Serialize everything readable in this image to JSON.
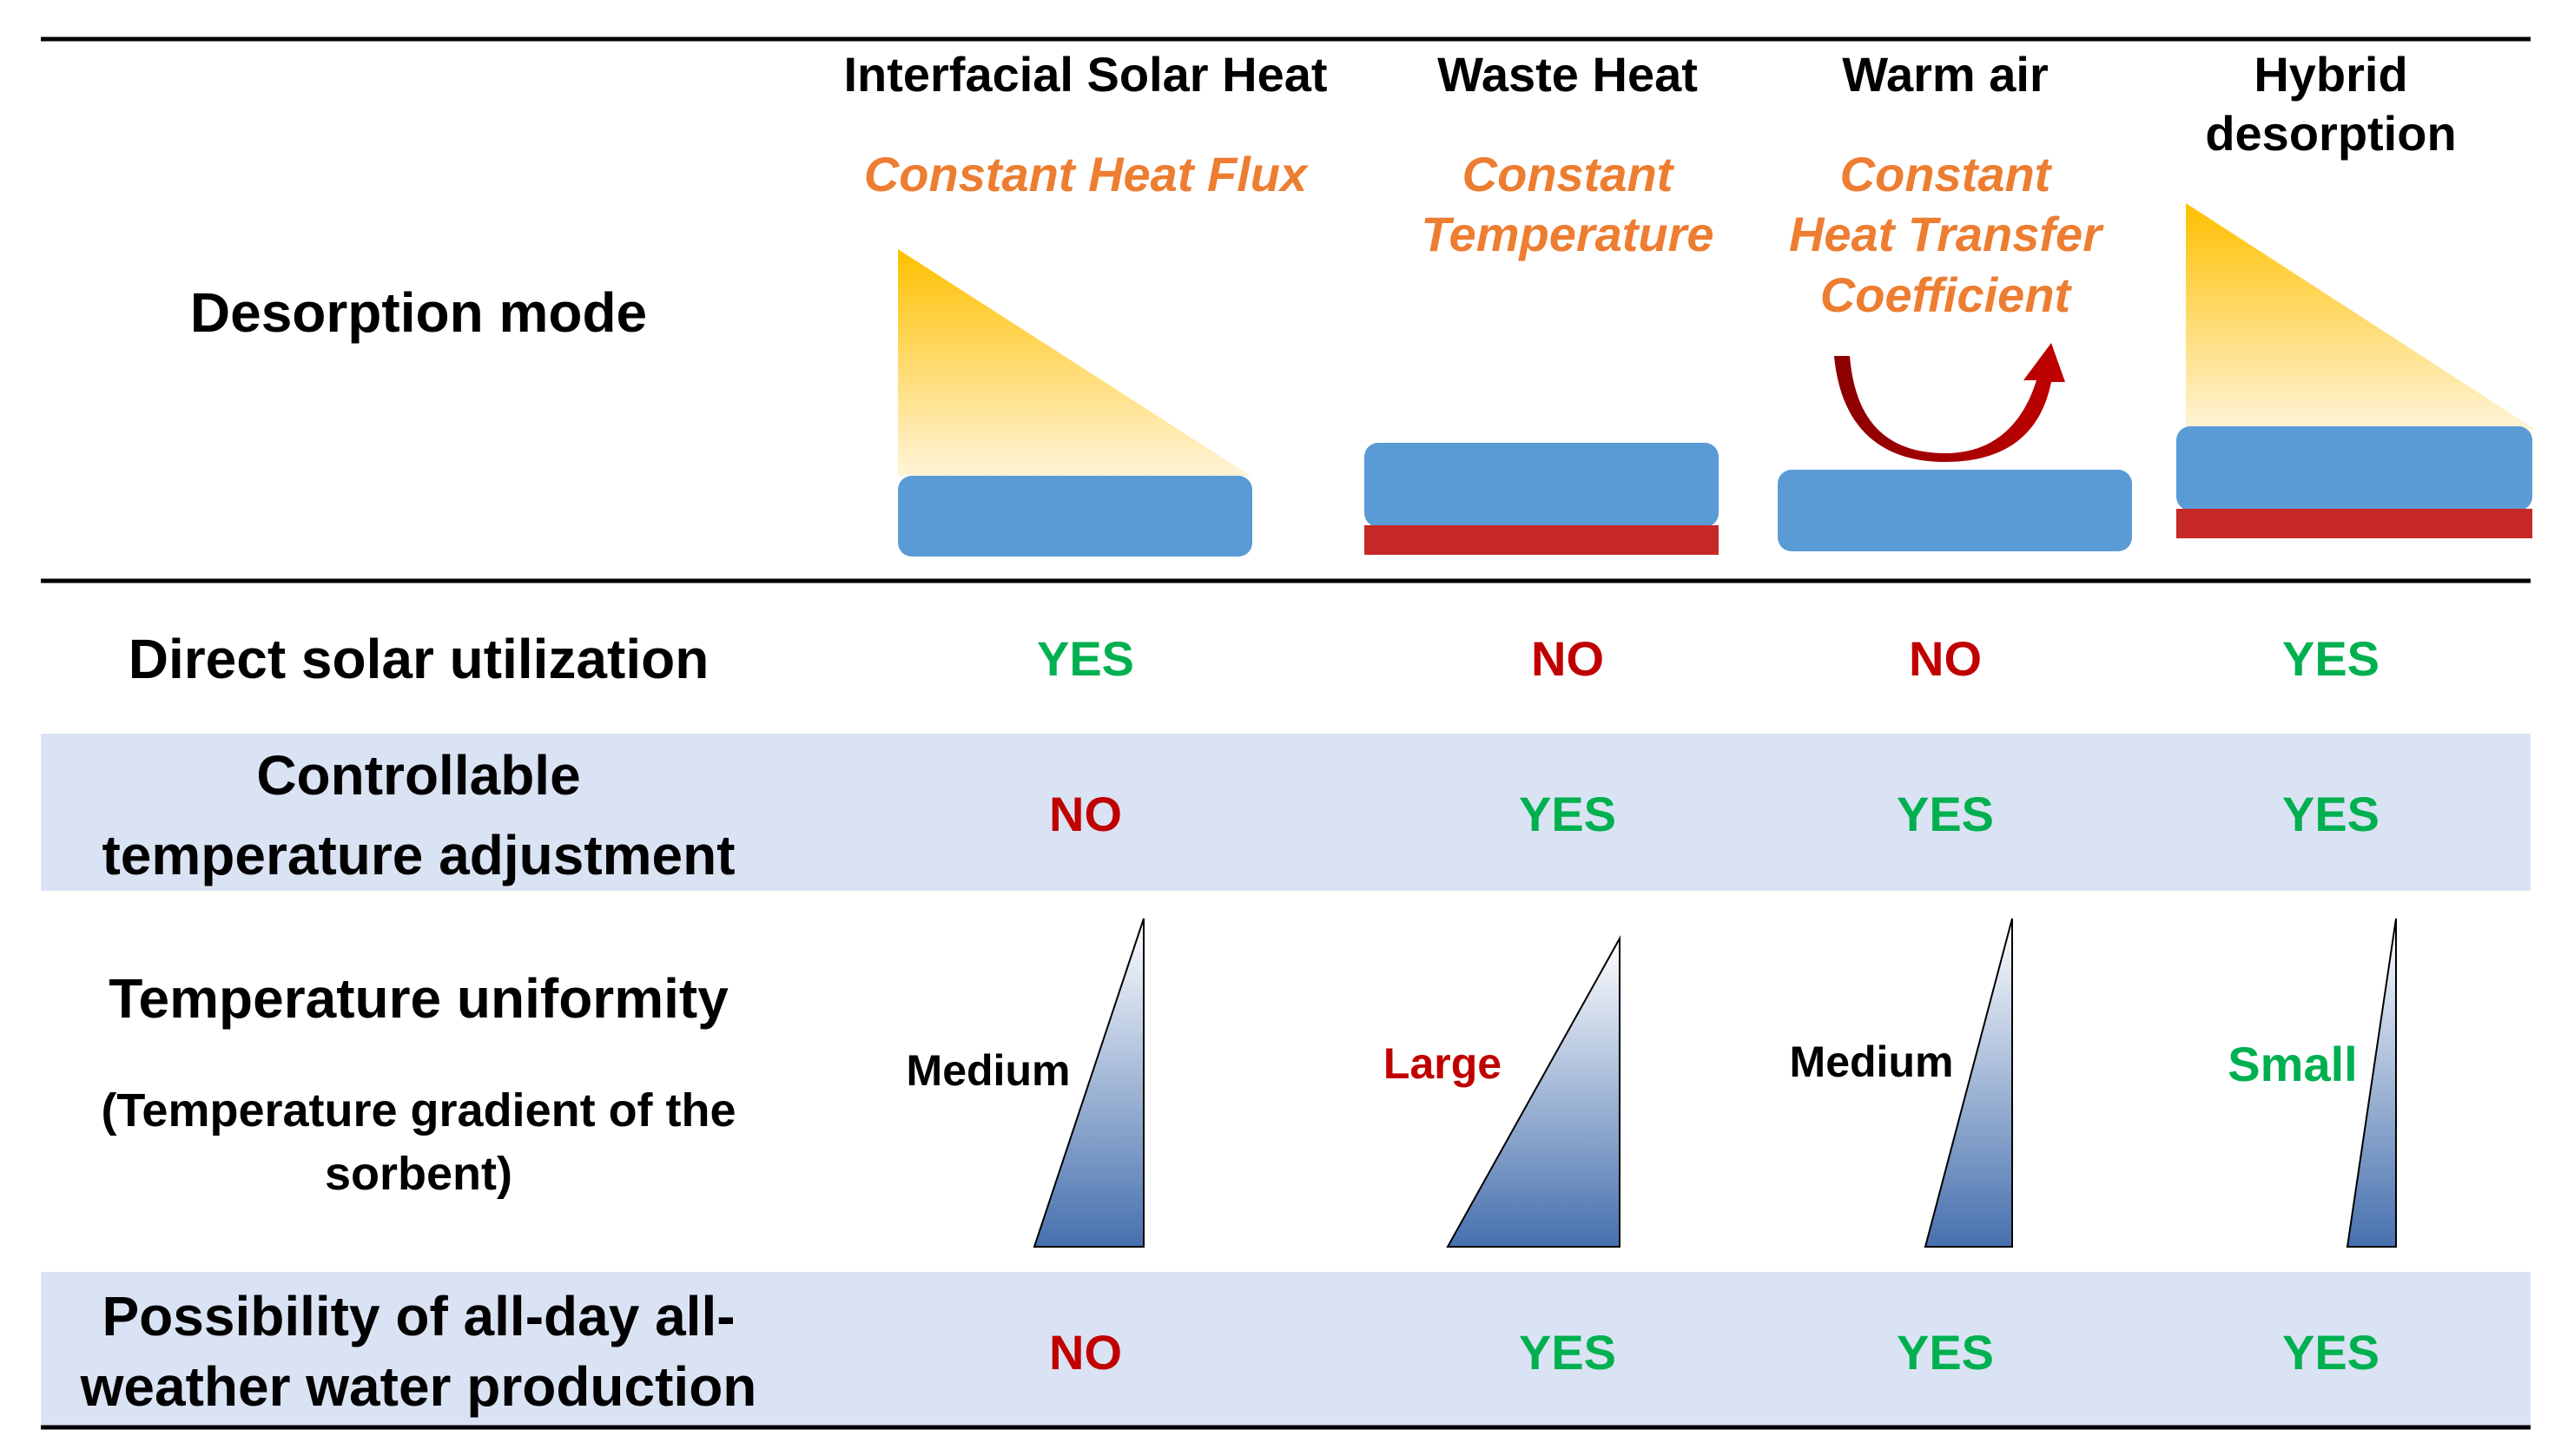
{
  "colors": {
    "yes": "#00b050",
    "no": "#c00000",
    "heat_mode": "#ed7d31",
    "sorbent": "#5b9bd5",
    "heater": "#c62828",
    "band": "#dae3f3"
  },
  "columns": [
    {
      "title": [
        "Interfacial Solar Heat"
      ],
      "mode": [
        "Constant Heat Flux"
      ]
    },
    {
      "title": [
        "Waste Heat"
      ],
      "mode": [
        "Constant",
        "Temperature"
      ]
    },
    {
      "title": [
        "Warm air"
      ],
      "mode": [
        "Constant",
        "Heat Transfer",
        "Coefficient"
      ]
    },
    {
      "title": [
        "Hybrid",
        "desorption"
      ],
      "mode": []
    }
  ],
  "rows": {
    "desorption_mode": {
      "label": "Desorption mode"
    },
    "direct_solar": {
      "label": "Direct solar utilization",
      "values": [
        "YES",
        "NO",
        "NO",
        "YES"
      ]
    },
    "controllable": {
      "label": [
        "Controllable",
        "temperature adjustment"
      ],
      "values": [
        "NO",
        "YES",
        "YES",
        "YES"
      ]
    },
    "uniformity": {
      "label": "Temperature uniformity",
      "sublabel": [
        "(Temperature gradient of the",
        "sorbent)"
      ],
      "values": [
        "Medium",
        "Large",
        "Medium",
        "Small"
      ]
    },
    "all_day": {
      "label": [
        "Possibility of all-day all-",
        "weather water production"
      ],
      "values": [
        "NO",
        "YES",
        "YES",
        "YES"
      ]
    }
  }
}
